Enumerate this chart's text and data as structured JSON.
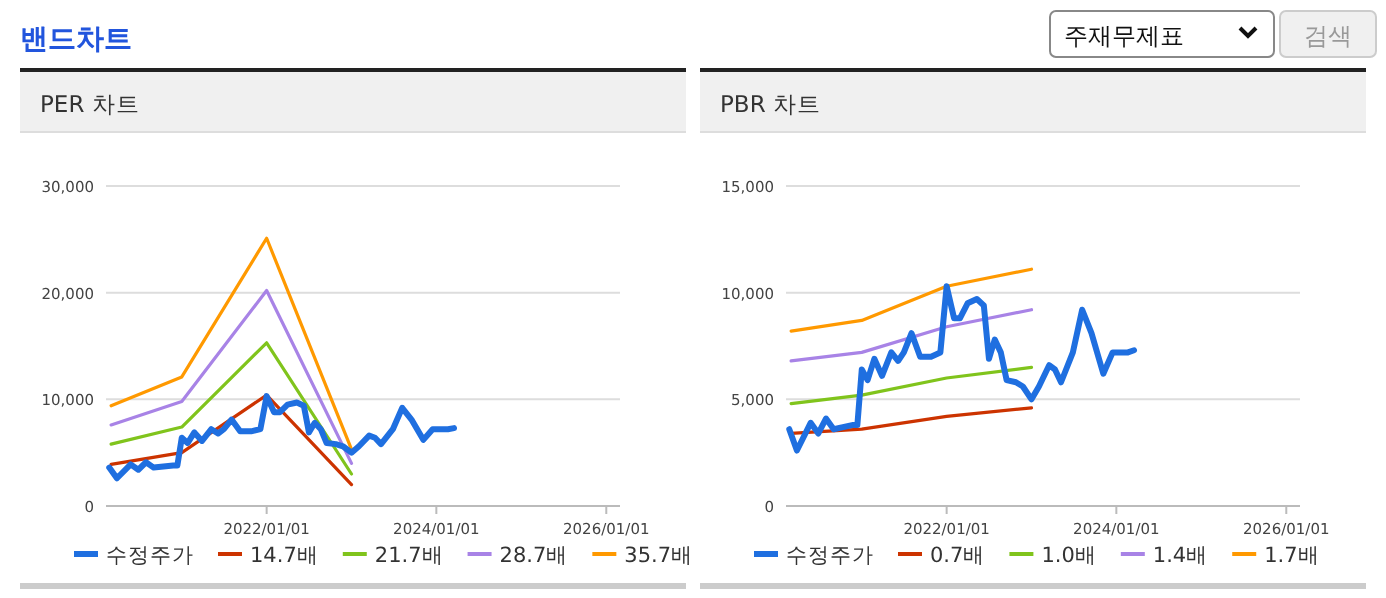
{
  "chart_data": [
    {
      "type": "line",
      "title": "PER 차트",
      "annotations": [
        "밴드차트",
        "주재무제표",
        "검색"
      ],
      "xlim": [
        "2020-02-10",
        "2026-03-01"
      ],
      "xticks": [
        {
          "value": "2022-01-01",
          "label": "2022/01/01"
        },
        {
          "value": "2024-01-01",
          "label": "2024/01/01"
        },
        {
          "value": "2026-01-01",
          "label": "2026/01/01"
        }
      ],
      "ylim": [
        0,
        30000
      ],
      "yticks": [
        0,
        {
          "value": 10000,
          "label": "10,000"
        },
        {
          "value": 20000,
          "label": "20,000"
        },
        {
          "value": 30000,
          "label": "30,000"
        }
      ],
      "grid": "y",
      "legend": "bottom",
      "line_style": "solid",
      "series": [
        {
          "name": "수정주가",
          "color": "#1f6fe0",
          "x": [
            "2020-02-24",
            "2020-03-28",
            "2020-05-26",
            "2020-06-28",
            "2020-07-31",
            "2020-09-02",
            "2020-11-25",
            "2020-12-13",
            "2021-01-01",
            "2021-01-26",
            "2021-02-24",
            "2021-03-29",
            "2021-05-08",
            "2021-06-06",
            "2021-07-01",
            "2021-08-03",
            "2021-09-09",
            "2021-10-26",
            "2021-12-05",
            "2022-01-01",
            "2022-02-02",
            "2022-02-27",
            "2022-04-01",
            "2022-05-11",
            "2022-06-10",
            "2022-07-02",
            "2022-07-27",
            "2022-08-22",
            "2022-09-16",
            "2022-10-26",
            "2022-11-25",
            "2023-01-01",
            "2023-02-02",
            "2023-03-18",
            "2023-04-12",
            "2023-05-08",
            "2023-06-28",
            "2023-08-07",
            "2023-09-16",
            "2023-11-06",
            "2023-12-16",
            "2024-01-22",
            "2024-02-20",
            "2024-03-17"
          ],
          "values": [
            3600,
            2600,
            3900,
            3400,
            4100,
            3600,
            3800,
            3800,
            6400,
            5900,
            6900,
            6100,
            7200,
            6800,
            7200,
            8100,
            7000,
            7000,
            7200,
            10300,
            8800,
            8800,
            9500,
            9700,
            9400,
            6900,
            7800,
            7200,
            5900,
            5800,
            5600,
            5000,
            5600,
            6600,
            6400,
            5800,
            7200,
            9200,
            8100,
            6200,
            7200,
            7200,
            7200,
            7300
          ]
        },
        {
          "name": "14.7배",
          "color": "#cc3300",
          "x": [
            "2020-03-03",
            "2021-01-01",
            "2022-01-01",
            "2023-01-01"
          ],
          "values": [
            3900,
            5000,
            10400,
            2000
          ]
        },
        {
          "name": "21.7배",
          "color": "#80c41c",
          "x": [
            "2020-03-03",
            "2021-01-01",
            "2022-01-01",
            "2023-01-01"
          ],
          "values": [
            5800,
            7400,
            15300,
            3000
          ]
        },
        {
          "name": "28.7배",
          "color": "#a883e6",
          "x": [
            "2020-03-03",
            "2021-01-01",
            "2022-01-01",
            "2023-01-01"
          ],
          "values": [
            7600,
            9800,
            20200,
            4000
          ]
        },
        {
          "name": "35.7배",
          "color": "#ff9900",
          "x": [
            "2020-03-03",
            "2021-01-01",
            "2022-01-01",
            "2023-01-01"
          ],
          "values": [
            9400,
            12100,
            25100,
            5300
          ]
        }
      ]
    },
    {
      "type": "line",
      "title": "PBR 차트",
      "xlim": [
        "2020-02-10",
        "2026-03-01"
      ],
      "xticks": [
        {
          "value": "2022-01-01",
          "label": "2022/01/01"
        },
        {
          "value": "2024-01-01",
          "label": "2024/01/01"
        },
        {
          "value": "2026-01-01",
          "label": "2026/01/01"
        }
      ],
      "ylim": [
        0,
        15000
      ],
      "yticks": [
        0,
        {
          "value": 5000,
          "label": "5,000"
        },
        {
          "value": 10000,
          "label": "10,000"
        },
        {
          "value": 15000,
          "label": "15,000"
        }
      ],
      "grid": "y",
      "legend": "bottom",
      "line_style": "solid",
      "series": [
        {
          "name": "수정주가",
          "color": "#1f6fe0",
          "x": [
            "2020-02-24",
            "2020-03-28",
            "2020-05-26",
            "2020-06-28",
            "2020-07-31",
            "2020-09-02",
            "2020-11-25",
            "2020-12-13",
            "2021-01-01",
            "2021-01-26",
            "2021-02-24",
            "2021-03-29",
            "2021-05-08",
            "2021-06-06",
            "2021-07-01",
            "2021-08-03",
            "2021-09-09",
            "2021-10-26",
            "2021-12-05",
            "2022-01-01",
            "2022-02-02",
            "2022-02-27",
            "2022-04-01",
            "2022-05-11",
            "2022-06-10",
            "2022-07-02",
            "2022-07-27",
            "2022-08-22",
            "2022-09-16",
            "2022-10-26",
            "2022-11-25",
            "2023-01-01",
            "2023-02-02",
            "2023-03-18",
            "2023-04-12",
            "2023-05-08",
            "2023-06-28",
            "2023-08-07",
            "2023-09-16",
            "2023-11-06",
            "2023-12-16",
            "2024-01-22",
            "2024-02-20",
            "2024-03-17"
          ],
          "values": [
            3600,
            2600,
            3900,
            3400,
            4100,
            3600,
            3800,
            3800,
            6400,
            5900,
            6900,
            6100,
            7200,
            6800,
            7200,
            8100,
            7000,
            7000,
            7200,
            10300,
            8800,
            8800,
            9500,
            9700,
            9400,
            6900,
            7800,
            7200,
            5900,
            5800,
            5600,
            5000,
            5600,
            6600,
            6400,
            5800,
            7200,
            9200,
            8100,
            6200,
            7200,
            7200,
            7200,
            7300
          ]
        },
        {
          "name": "0.7배",
          "color": "#cc3300",
          "x": [
            "2020-03-03",
            "2021-01-01",
            "2022-01-01",
            "2023-01-01"
          ],
          "values": [
            3400,
            3600,
            4200,
            4600
          ]
        },
        {
          "name": "1.0배",
          "color": "#80c41c",
          "x": [
            "2020-03-03",
            "2021-01-01",
            "2022-01-01",
            "2023-01-01"
          ],
          "values": [
            4800,
            5200,
            6000,
            6500
          ]
        },
        {
          "name": "1.4배",
          "color": "#a883e6",
          "x": [
            "2020-03-03",
            "2021-01-01",
            "2022-01-01",
            "2023-01-01"
          ],
          "values": [
            6800,
            7200,
            8400,
            9200
          ]
        },
        {
          "name": "1.7배",
          "color": "#ff9900",
          "x": [
            "2020-03-03",
            "2021-01-01",
            "2022-01-01",
            "2023-01-01"
          ],
          "values": [
            8200,
            8700,
            10300,
            11100
          ]
        }
      ]
    }
  ]
}
